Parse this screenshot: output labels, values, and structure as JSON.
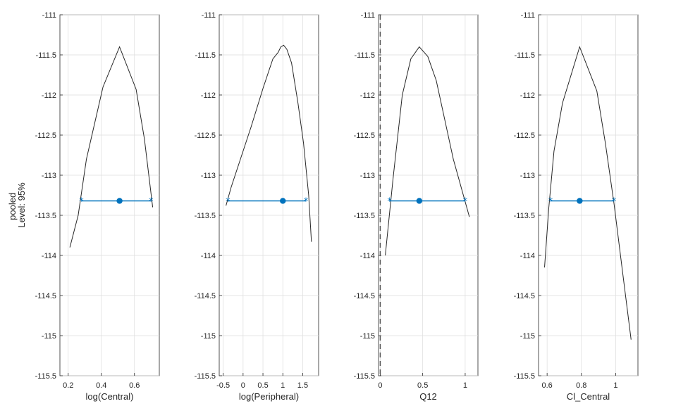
{
  "figure": {
    "ylabel_lines": [
      "pooled",
      "Level: 95%"
    ]
  },
  "chart_data": [
    {
      "type": "line",
      "xlabel": "log(Central)",
      "ylabel": "",
      "xlim": [
        0.15,
        0.75
      ],
      "ylim": [
        -115.5,
        -111
      ],
      "xticks": [
        0.2,
        0.4,
        0.6
      ],
      "xtick_labels": [
        "0.2",
        "0.4",
        "0.6"
      ],
      "yticks": [
        -115.5,
        -115,
        -114.5,
        -114,
        -113.5,
        -113,
        -112.5,
        -112,
        -111.5,
        -111
      ],
      "ytick_labels": [
        "-115.5",
        "-115",
        "-114.5",
        "-114",
        "-113.5",
        "-113",
        "-112.5",
        "-112",
        "-111.5",
        "-111"
      ],
      "grid": true,
      "series": [
        {
          "kind": "profile",
          "x": [
            0.21,
            0.26,
            0.31,
            0.41,
            0.51,
            0.61,
            0.66,
            0.71
          ],
          "y": [
            -113.9,
            -113.5,
            -112.8,
            -111.9,
            -111.4,
            -111.93,
            -112.55,
            -113.4
          ]
        }
      ],
      "ci": {
        "lower": 0.28,
        "estimate": 0.51,
        "upper": 0.7,
        "y": -113.32
      },
      "ref_line_x": null
    },
    {
      "type": "line",
      "xlabel": "log(Peripheral)",
      "ylabel": "",
      "xlim": [
        -0.6,
        1.9
      ],
      "ylim": [
        -115.5,
        -111
      ],
      "xticks": [
        -0.5,
        0,
        0.5,
        1,
        1.5
      ],
      "xtick_labels": [
        "-0.5",
        "0",
        "0.5",
        "1",
        "1.5"
      ],
      "grid": true,
      "series": [
        {
          "kind": "profile",
          "x": [
            -0.43,
            -0.3,
            -0.1,
            0.2,
            0.5,
            0.75,
            0.88,
            0.95,
            1.02,
            1.1,
            1.22,
            1.38,
            1.52,
            1.65,
            1.72
          ],
          "y": [
            -113.38,
            -113.15,
            -112.85,
            -112.4,
            -111.92,
            -111.55,
            -111.47,
            -111.4,
            -111.38,
            -111.43,
            -111.6,
            -112.1,
            -112.6,
            -113.25,
            -113.83
          ]
        }
      ],
      "ci": {
        "lower": -0.38,
        "estimate": 1.0,
        "upper": 1.58,
        "y": -113.32
      },
      "ref_line_x": null
    },
    {
      "type": "line",
      "xlabel": "Q12",
      "ylabel": "",
      "xlim": [
        -0.02,
        1.15
      ],
      "ylim": [
        -115.5,
        -111
      ],
      "xticks": [
        0,
        0.5,
        1
      ],
      "xtick_labels": [
        "0",
        "0.5",
        "1"
      ],
      "grid": true,
      "series": [
        {
          "kind": "profile",
          "x": [
            0.06,
            0.15,
            0.26,
            0.36,
            0.46,
            0.56,
            0.66,
            0.86,
            1.05
          ],
          "y": [
            -114.0,
            -113.05,
            -112.0,
            -111.55,
            -111.4,
            -111.52,
            -111.82,
            -112.8,
            -113.52
          ]
        }
      ],
      "ci": {
        "lower": 0.11,
        "estimate": 0.46,
        "upper": 1.0,
        "y": -113.32
      },
      "ref_line_x": 0
    },
    {
      "type": "line",
      "xlabel": "Cl_Central",
      "ylabel": "",
      "xlim": [
        0.55,
        1.13
      ],
      "ylim": [
        -115.5,
        -111
      ],
      "xticks": [
        0.6,
        0.8,
        1
      ],
      "xtick_labels": [
        "0.6",
        "0.8",
        "1"
      ],
      "grid": true,
      "series": [
        {
          "kind": "profile",
          "x": [
            0.585,
            0.61,
            0.64,
            0.69,
            0.79,
            0.89,
            0.94,
            0.99,
            1.04,
            1.09
          ],
          "y": [
            -114.15,
            -113.4,
            -112.7,
            -112.1,
            -111.4,
            -111.95,
            -112.6,
            -113.35,
            -114.2,
            -115.05
          ]
        }
      ],
      "ci": {
        "lower": 0.62,
        "estimate": 0.79,
        "upper": 0.99,
        "y": -113.32
      },
      "ref_line_x": null
    }
  ],
  "colors": {
    "ci": "#0072bd",
    "profile": "#262626",
    "grid": "#dcdcdc",
    "ref_line": "#555555"
  },
  "icons": {
    "ci_endpoint": "asterisk-marker",
    "estimate": "filled-circle-marker"
  }
}
